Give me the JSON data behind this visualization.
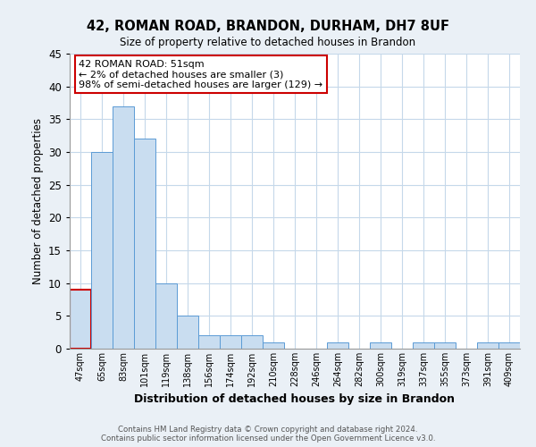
{
  "title": "42, ROMAN ROAD, BRANDON, DURHAM, DH7 8UF",
  "subtitle": "Size of property relative to detached houses in Brandon",
  "xlabel": "Distribution of detached houses by size in Brandon",
  "ylabel": "Number of detached properties",
  "bar_labels": [
    "47sqm",
    "65sqm",
    "83sqm",
    "101sqm",
    "119sqm",
    "138sqm",
    "156sqm",
    "174sqm",
    "192sqm",
    "210sqm",
    "228sqm",
    "246sqm",
    "264sqm",
    "282sqm",
    "300sqm",
    "319sqm",
    "337sqm",
    "355sqm",
    "373sqm",
    "391sqm",
    "409sqm"
  ],
  "bar_values": [
    9,
    30,
    37,
    32,
    10,
    5,
    2,
    2,
    2,
    1,
    0,
    0,
    1,
    0,
    1,
    0,
    1,
    1,
    0,
    1,
    1
  ],
  "bar_color": "#c9ddf0",
  "bar_edge_color": "#5b9bd5",
  "highlight_bar_index": 0,
  "highlight_bar_edge_color": "#cc0000",
  "annotation_title": "42 ROMAN ROAD: 51sqm",
  "annotation_line1": "← 2% of detached houses are smaller (3)",
  "annotation_line2": "98% of semi-detached houses are larger (129) →",
  "annotation_box_edge_color": "#cc0000",
  "ylim": [
    0,
    45
  ],
  "yticks": [
    0,
    5,
    10,
    15,
    20,
    25,
    30,
    35,
    40,
    45
  ],
  "footer_line1": "Contains HM Land Registry data © Crown copyright and database right 2024.",
  "footer_line2": "Contains public sector information licensed under the Open Government Licence v3.0.",
  "bg_color": "#eaf0f6",
  "plot_bg_color": "#ffffff",
  "grid_color": "#c5d8ea"
}
